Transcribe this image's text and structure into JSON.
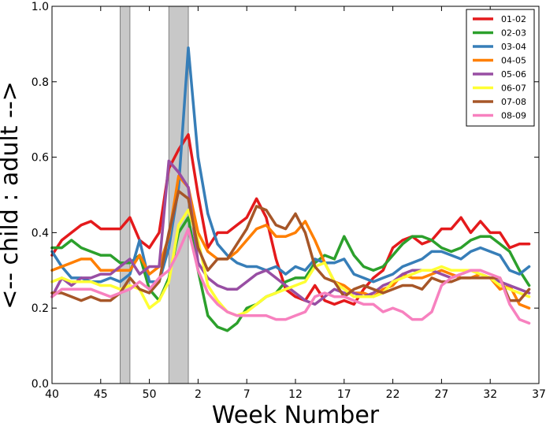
{
  "chart_data": {
    "type": "line",
    "title": "",
    "xlabel": "Week Number",
    "ylabel": "<-- child : adult -->",
    "x_tick_labels": [
      "40",
      "45",
      "50",
      "2",
      "7",
      "12",
      "17",
      "22",
      "27",
      "32",
      "37"
    ],
    "y_tick_labels": [
      "0.0",
      "0.2",
      "0.4",
      "0.6",
      "0.8",
      "1.0"
    ],
    "y_ticks": [
      0.0,
      0.2,
      0.4,
      0.6,
      0.8,
      1.0
    ],
    "ylim": [
      0,
      1
    ],
    "x_positions_note": "week index 0 = week 40; indexes advance by one week; week 2 at index 15",
    "xlim": [
      0,
      50
    ],
    "shaded_regions": [
      [
        7,
        8
      ],
      [
        12,
        14
      ]
    ],
    "legend_position": "top-right",
    "series": [
      {
        "name": "01-02",
        "color": "#e41a1c",
        "values": [
          0.34,
          0.38,
          0.4,
          0.42,
          0.43,
          0.41,
          0.41,
          0.41,
          0.44,
          0.38,
          0.36,
          0.4,
          0.57,
          0.62,
          0.66,
          0.5,
          0.36,
          0.4,
          0.4,
          0.42,
          0.44,
          0.49,
          0.44,
          0.33,
          0.25,
          0.23,
          0.22,
          0.26,
          0.22,
          0.21,
          0.22,
          0.21,
          0.25,
          0.28,
          0.3,
          0.36,
          0.38,
          0.39,
          0.37,
          0.38,
          0.41,
          0.41,
          0.44,
          0.4,
          0.43,
          0.4,
          0.4,
          0.36,
          0.37,
          0.37
        ]
      },
      {
        "name": "02-03",
        "color": "#2ca02c",
        "values": [
          0.36,
          0.36,
          0.38,
          0.36,
          0.35,
          0.34,
          0.34,
          0.32,
          0.32,
          0.34,
          0.25,
          0.22,
          0.28,
          0.4,
          0.44,
          0.3,
          0.18,
          0.15,
          0.14,
          0.16,
          0.2,
          0.21,
          0.23,
          0.24,
          0.27,
          0.28,
          0.28,
          0.32,
          0.34,
          0.33,
          0.39,
          0.34,
          0.31,
          0.3,
          0.31,
          0.34,
          0.37,
          0.39,
          0.39,
          0.38,
          0.36,
          0.35,
          0.36,
          0.38,
          0.39,
          0.39,
          0.37,
          0.35,
          0.3,
          0.26
        ]
      },
      {
        "name": "03-04",
        "color": "#377eb8",
        "values": [
          0.35,
          0.31,
          0.28,
          0.28,
          0.27,
          0.27,
          0.28,
          0.27,
          0.29,
          0.38,
          0.27,
          0.27,
          0.36,
          0.52,
          0.89,
          0.6,
          0.45,
          0.37,
          0.34,
          0.32,
          0.31,
          0.31,
          0.3,
          0.31,
          0.29,
          0.31,
          0.3,
          0.33,
          0.32,
          0.32,
          0.33,
          0.29,
          0.28,
          0.27,
          0.28,
          0.29,
          0.31,
          0.32,
          0.33,
          0.35,
          0.35,
          0.34,
          0.33,
          0.35,
          0.36,
          0.35,
          0.34,
          0.3,
          0.29,
          0.31
        ]
      },
      {
        "name": "04-05",
        "color": "#ff7f00",
        "values": [
          0.3,
          0.31,
          0.32,
          0.33,
          0.33,
          0.3,
          0.3,
          0.3,
          0.3,
          0.34,
          0.29,
          0.31,
          0.39,
          0.55,
          0.52,
          0.4,
          0.35,
          0.33,
          0.33,
          0.35,
          0.38,
          0.41,
          0.42,
          0.39,
          0.39,
          0.4,
          0.43,
          0.38,
          0.32,
          0.27,
          0.26,
          0.24,
          0.24,
          0.23,
          0.25,
          0.26,
          0.29,
          0.28,
          0.28,
          0.29,
          0.3,
          0.29,
          0.28,
          0.28,
          0.29,
          0.28,
          0.25,
          0.26,
          0.21,
          0.2
        ]
      },
      {
        "name": "05-06",
        "color": "#984ea3",
        "values": [
          0.23,
          0.28,
          0.26,
          0.28,
          0.28,
          0.29,
          0.29,
          0.31,
          0.33,
          0.29,
          0.31,
          0.31,
          0.59,
          0.56,
          0.52,
          0.32,
          0.28,
          0.26,
          0.25,
          0.25,
          0.27,
          0.29,
          0.3,
          0.28,
          0.26,
          0.24,
          0.22,
          0.21,
          0.23,
          0.25,
          0.24,
          0.24,
          0.23,
          0.24,
          0.26,
          0.27,
          0.29,
          0.3,
          0.3,
          0.3,
          0.29,
          0.28,
          0.29,
          0.3,
          0.29,
          0.28,
          0.27,
          0.26,
          0.25,
          0.24
        ]
      },
      {
        "name": "06-07",
        "color": "#ffff33",
        "values": [
          0.27,
          0.28,
          0.27,
          0.27,
          0.27,
          0.26,
          0.26,
          0.25,
          0.26,
          0.25,
          0.2,
          0.22,
          0.27,
          0.42,
          0.46,
          0.38,
          0.26,
          0.22,
          0.19,
          0.18,
          0.19,
          0.21,
          0.23,
          0.24,
          0.25,
          0.26,
          0.27,
          0.31,
          0.32,
          0.27,
          0.25,
          0.23,
          0.23,
          0.23,
          0.24,
          0.27,
          0.28,
          0.29,
          0.3,
          0.3,
          0.31,
          0.3,
          0.3,
          0.3,
          0.29,
          0.28,
          0.26,
          0.25,
          0.24,
          0.23
        ]
      },
      {
        "name": "07-08",
        "color": "#a65628",
        "values": [
          0.24,
          0.24,
          0.23,
          0.22,
          0.23,
          0.22,
          0.22,
          0.24,
          0.28,
          0.25,
          0.24,
          0.27,
          0.4,
          0.51,
          0.49,
          0.36,
          0.3,
          0.33,
          0.33,
          0.37,
          0.41,
          0.47,
          0.46,
          0.42,
          0.41,
          0.45,
          0.4,
          0.31,
          0.28,
          0.27,
          0.23,
          0.25,
          0.26,
          0.25,
          0.24,
          0.25,
          0.26,
          0.26,
          0.25,
          0.28,
          0.27,
          0.27,
          0.28,
          0.28,
          0.28,
          0.28,
          0.28,
          0.22,
          0.22,
          0.25
        ]
      },
      {
        "name": "08-09",
        "color": "#f781bf",
        "values": [
          0.23,
          0.25,
          0.25,
          0.25,
          0.25,
          0.24,
          0.23,
          0.24,
          0.25,
          0.27,
          0.25,
          0.28,
          0.3,
          0.35,
          0.41,
          0.3,
          0.24,
          0.21,
          0.19,
          0.18,
          0.18,
          0.18,
          0.18,
          0.17,
          0.17,
          0.18,
          0.19,
          0.23,
          0.24,
          0.23,
          0.23,
          0.22,
          0.21,
          0.21,
          0.19,
          0.2,
          0.19,
          0.17,
          0.17,
          0.19,
          0.26,
          0.28,
          0.29,
          0.3,
          0.3,
          0.29,
          0.28,
          0.21,
          0.17,
          0.16
        ]
      }
    ]
  }
}
